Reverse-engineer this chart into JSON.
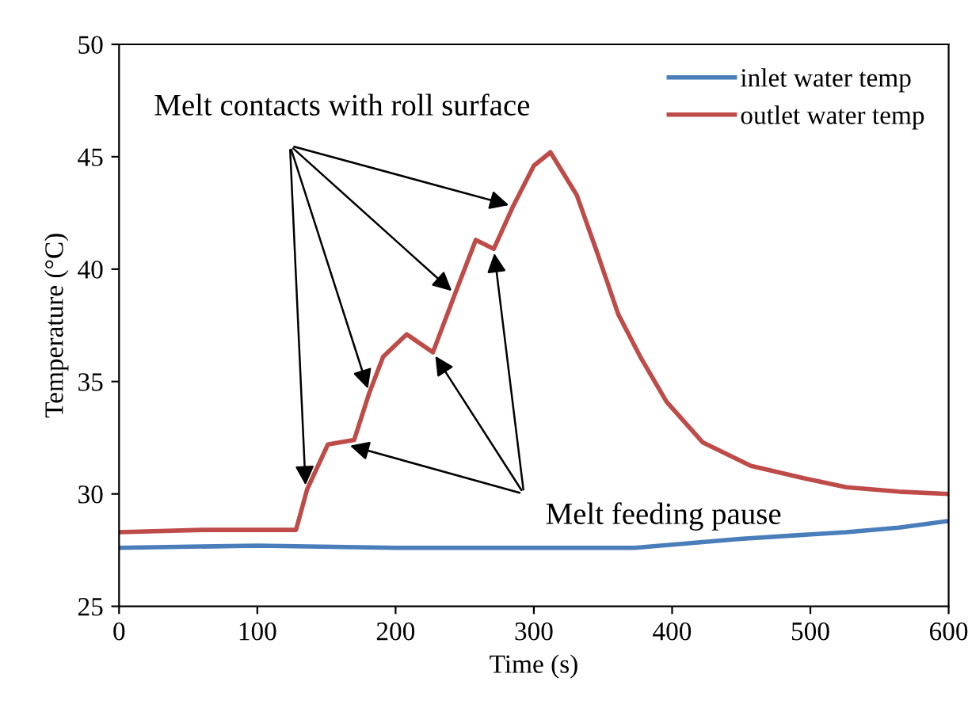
{
  "chart_data": {
    "type": "line",
    "xlabel": "Time (s)",
    "ylabel": "Temperature (°C)",
    "xlim": [
      0,
      600
    ],
    "ylim": [
      25,
      50
    ],
    "xticks": [
      0,
      100,
      200,
      300,
      400,
      500,
      600
    ],
    "yticks": [
      25,
      30,
      35,
      40,
      45,
      50
    ],
    "grid": false,
    "legend": "top right",
    "line_style": "solid",
    "marker": "none",
    "series": [
      {
        "name": "inlet water temp",
        "color": "#4a7ebb",
        "x": [
          0,
          100,
          200,
          300,
          373,
          449,
          526,
          564,
          600
        ],
        "values": [
          27.6,
          27.7,
          27.6,
          27.6,
          27.6,
          28.0,
          28.3,
          28.5,
          28.8
        ]
      },
      {
        "name": "outlet water temp",
        "color": "#be4b48",
        "x": [
          0,
          60,
          128,
          136,
          151,
          170,
          181,
          191,
          208,
          227,
          243,
          258,
          271,
          285,
          300,
          312,
          331,
          346,
          361,
          377,
          396,
          422,
          457,
          495,
          526,
          564,
          600
        ],
        "values": [
          28.3,
          28.4,
          28.4,
          30.2,
          32.2,
          32.4,
          34.5,
          36.1,
          37.1,
          36.3,
          38.9,
          41.3,
          40.9,
          42.8,
          44.6,
          45.2,
          43.3,
          40.7,
          38.0,
          36.1,
          34.1,
          32.3,
          31.25,
          30.7,
          30.3,
          30.1,
          30.0
        ]
      }
    ],
    "annotations": [
      {
        "text": "Melt contacts with roll surface",
        "x": 135,
        "y": 30.2
      },
      {
        "text": "Melt feeding pause",
        "x": 164,
        "y": 32.2
      }
    ]
  }
}
